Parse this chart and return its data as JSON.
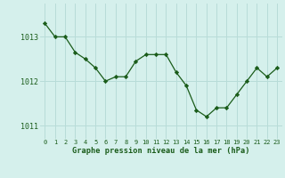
{
  "x": [
    0,
    1,
    2,
    3,
    4,
    5,
    6,
    7,
    8,
    9,
    10,
    11,
    12,
    13,
    14,
    15,
    16,
    17,
    18,
    19,
    20,
    21,
    22,
    23
  ],
  "y": [
    1013.3,
    1013.0,
    1013.0,
    1012.65,
    1012.5,
    1012.3,
    1012.0,
    1012.1,
    1012.1,
    1012.45,
    1012.6,
    1012.6,
    1012.6,
    1012.2,
    1011.9,
    1011.35,
    1011.2,
    1011.4,
    1011.4,
    1011.7,
    1012.0,
    1012.3,
    1012.1,
    1012.3
  ],
  "line_color": "#1a5c1a",
  "marker_color": "#1a5c1a",
  "bg_color": "#d5f0ec",
  "grid_color": "#b8dcd8",
  "xlabel": "Graphe pression niveau de la mer (hPa)",
  "xlabel_color": "#1a5c1a",
  "tick_color": "#1a5c1a",
  "ylim": [
    1010.7,
    1013.75
  ],
  "yticks": [
    1011,
    1012,
    1013
  ],
  "xticks": [
    0,
    1,
    2,
    3,
    4,
    5,
    6,
    7,
    8,
    9,
    10,
    11,
    12,
    13,
    14,
    15,
    16,
    17,
    18,
    19,
    20,
    21,
    22,
    23
  ],
  "xtick_labels": [
    "0",
    "1",
    "2",
    "3",
    "4",
    "5",
    "6",
    "7",
    "8",
    "9",
    "10",
    "11",
    "12",
    "13",
    "14",
    "15",
    "16",
    "17",
    "18",
    "19",
    "20",
    "21",
    "22",
    "23"
  ],
  "fig_width": 3.2,
  "fig_height": 2.0,
  "dpi": 100
}
